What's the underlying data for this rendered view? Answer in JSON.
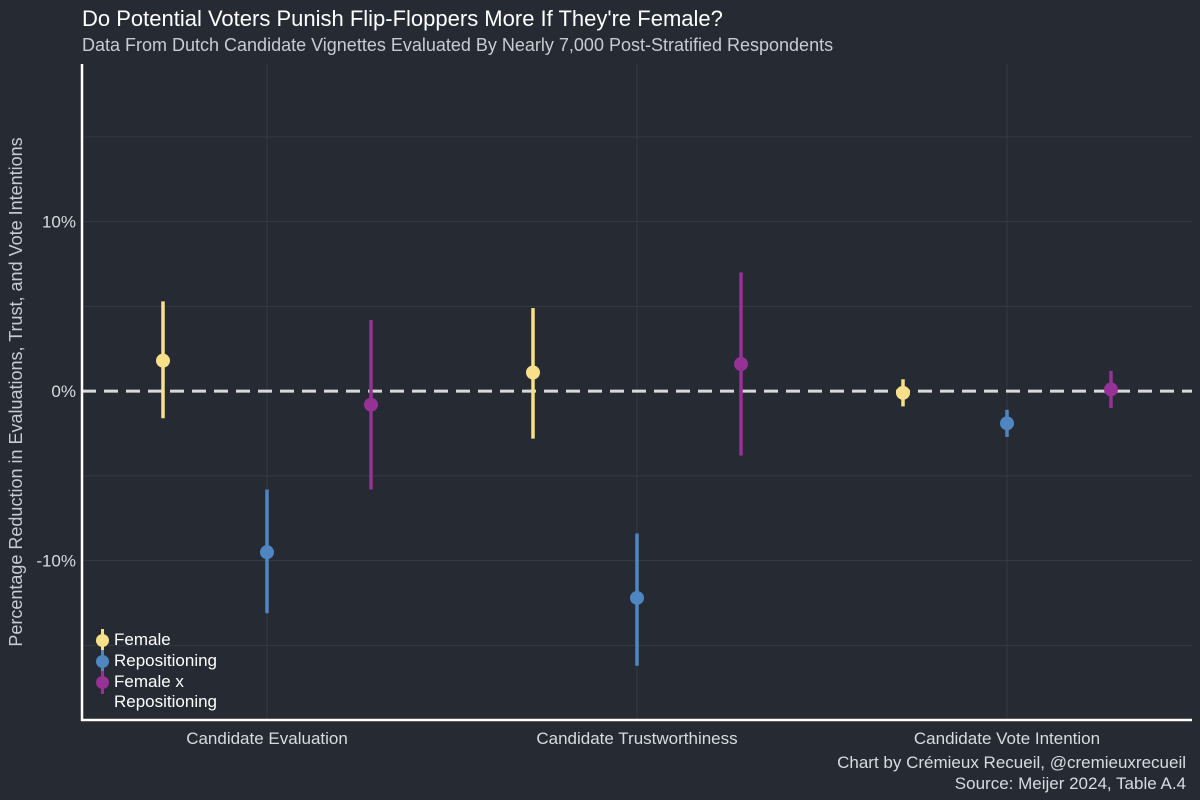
{
  "chart_data": {
    "type": "pointrange",
    "title": "Do Potential Voters Punish Flip-Floppers More If They're Female?",
    "subtitle": "Data From Dutch Candidate Vignettes Evaluated By Nearly 7,000 Post-Stratified Respondents",
    "ylabel": "Percentage Reduction in Evaluations, Trust, and Vote Intentions",
    "xlabel": "",
    "ylim": [
      -19.4,
      19.3
    ],
    "yticks": [
      -10,
      0,
      10
    ],
    "ytick_labels": [
      "-10%",
      "0%",
      "10%"
    ],
    "categories": [
      "Candidate Evaluation",
      "Candidate Trustworthiness",
      "Candidate Vote Intention"
    ],
    "reference_line": 0,
    "series": [
      {
        "name": "Female",
        "color": "#f8e08a",
        "estimates": [
          1.8,
          1.1,
          -0.1
        ],
        "lower": [
          -1.6,
          -2.8,
          -0.9
        ],
        "upper": [
          5.3,
          4.9,
          0.7
        ]
      },
      {
        "name": "Repositioning",
        "color": "#4f86c2",
        "estimates": [
          -9.5,
          -12.2,
          -1.9
        ],
        "lower": [
          -13.1,
          -16.2,
          -2.7
        ],
        "upper": [
          -5.8,
          -8.4,
          -1.1
        ]
      },
      {
        "name": "Female x Repositioning",
        "color": "#963196",
        "estimates": [
          -0.8,
          1.6,
          0.1
        ],
        "lower": [
          -5.8,
          -3.8,
          -1.0
        ],
        "upper": [
          4.2,
          7.0,
          1.2
        ]
      }
    ],
    "legend": {
      "position": "bottom-left",
      "entries": [
        {
          "label": "Female",
          "color": "#f8e08a"
        },
        {
          "label": "Repositioning",
          "color": "#4f86c2"
        },
        {
          "label": "Female x Repositioning",
          "color": "#963196"
        }
      ]
    },
    "caption_lines": [
      "Chart by Crémieux Recueil, @cremieuxrecueil",
      "Source: Meijer 2024, Table A.4"
    ]
  },
  "colors": {
    "background": "#252a33",
    "grid": "#343a44",
    "axis": "#ffffff",
    "reference_line": "#d9d9d9"
  }
}
